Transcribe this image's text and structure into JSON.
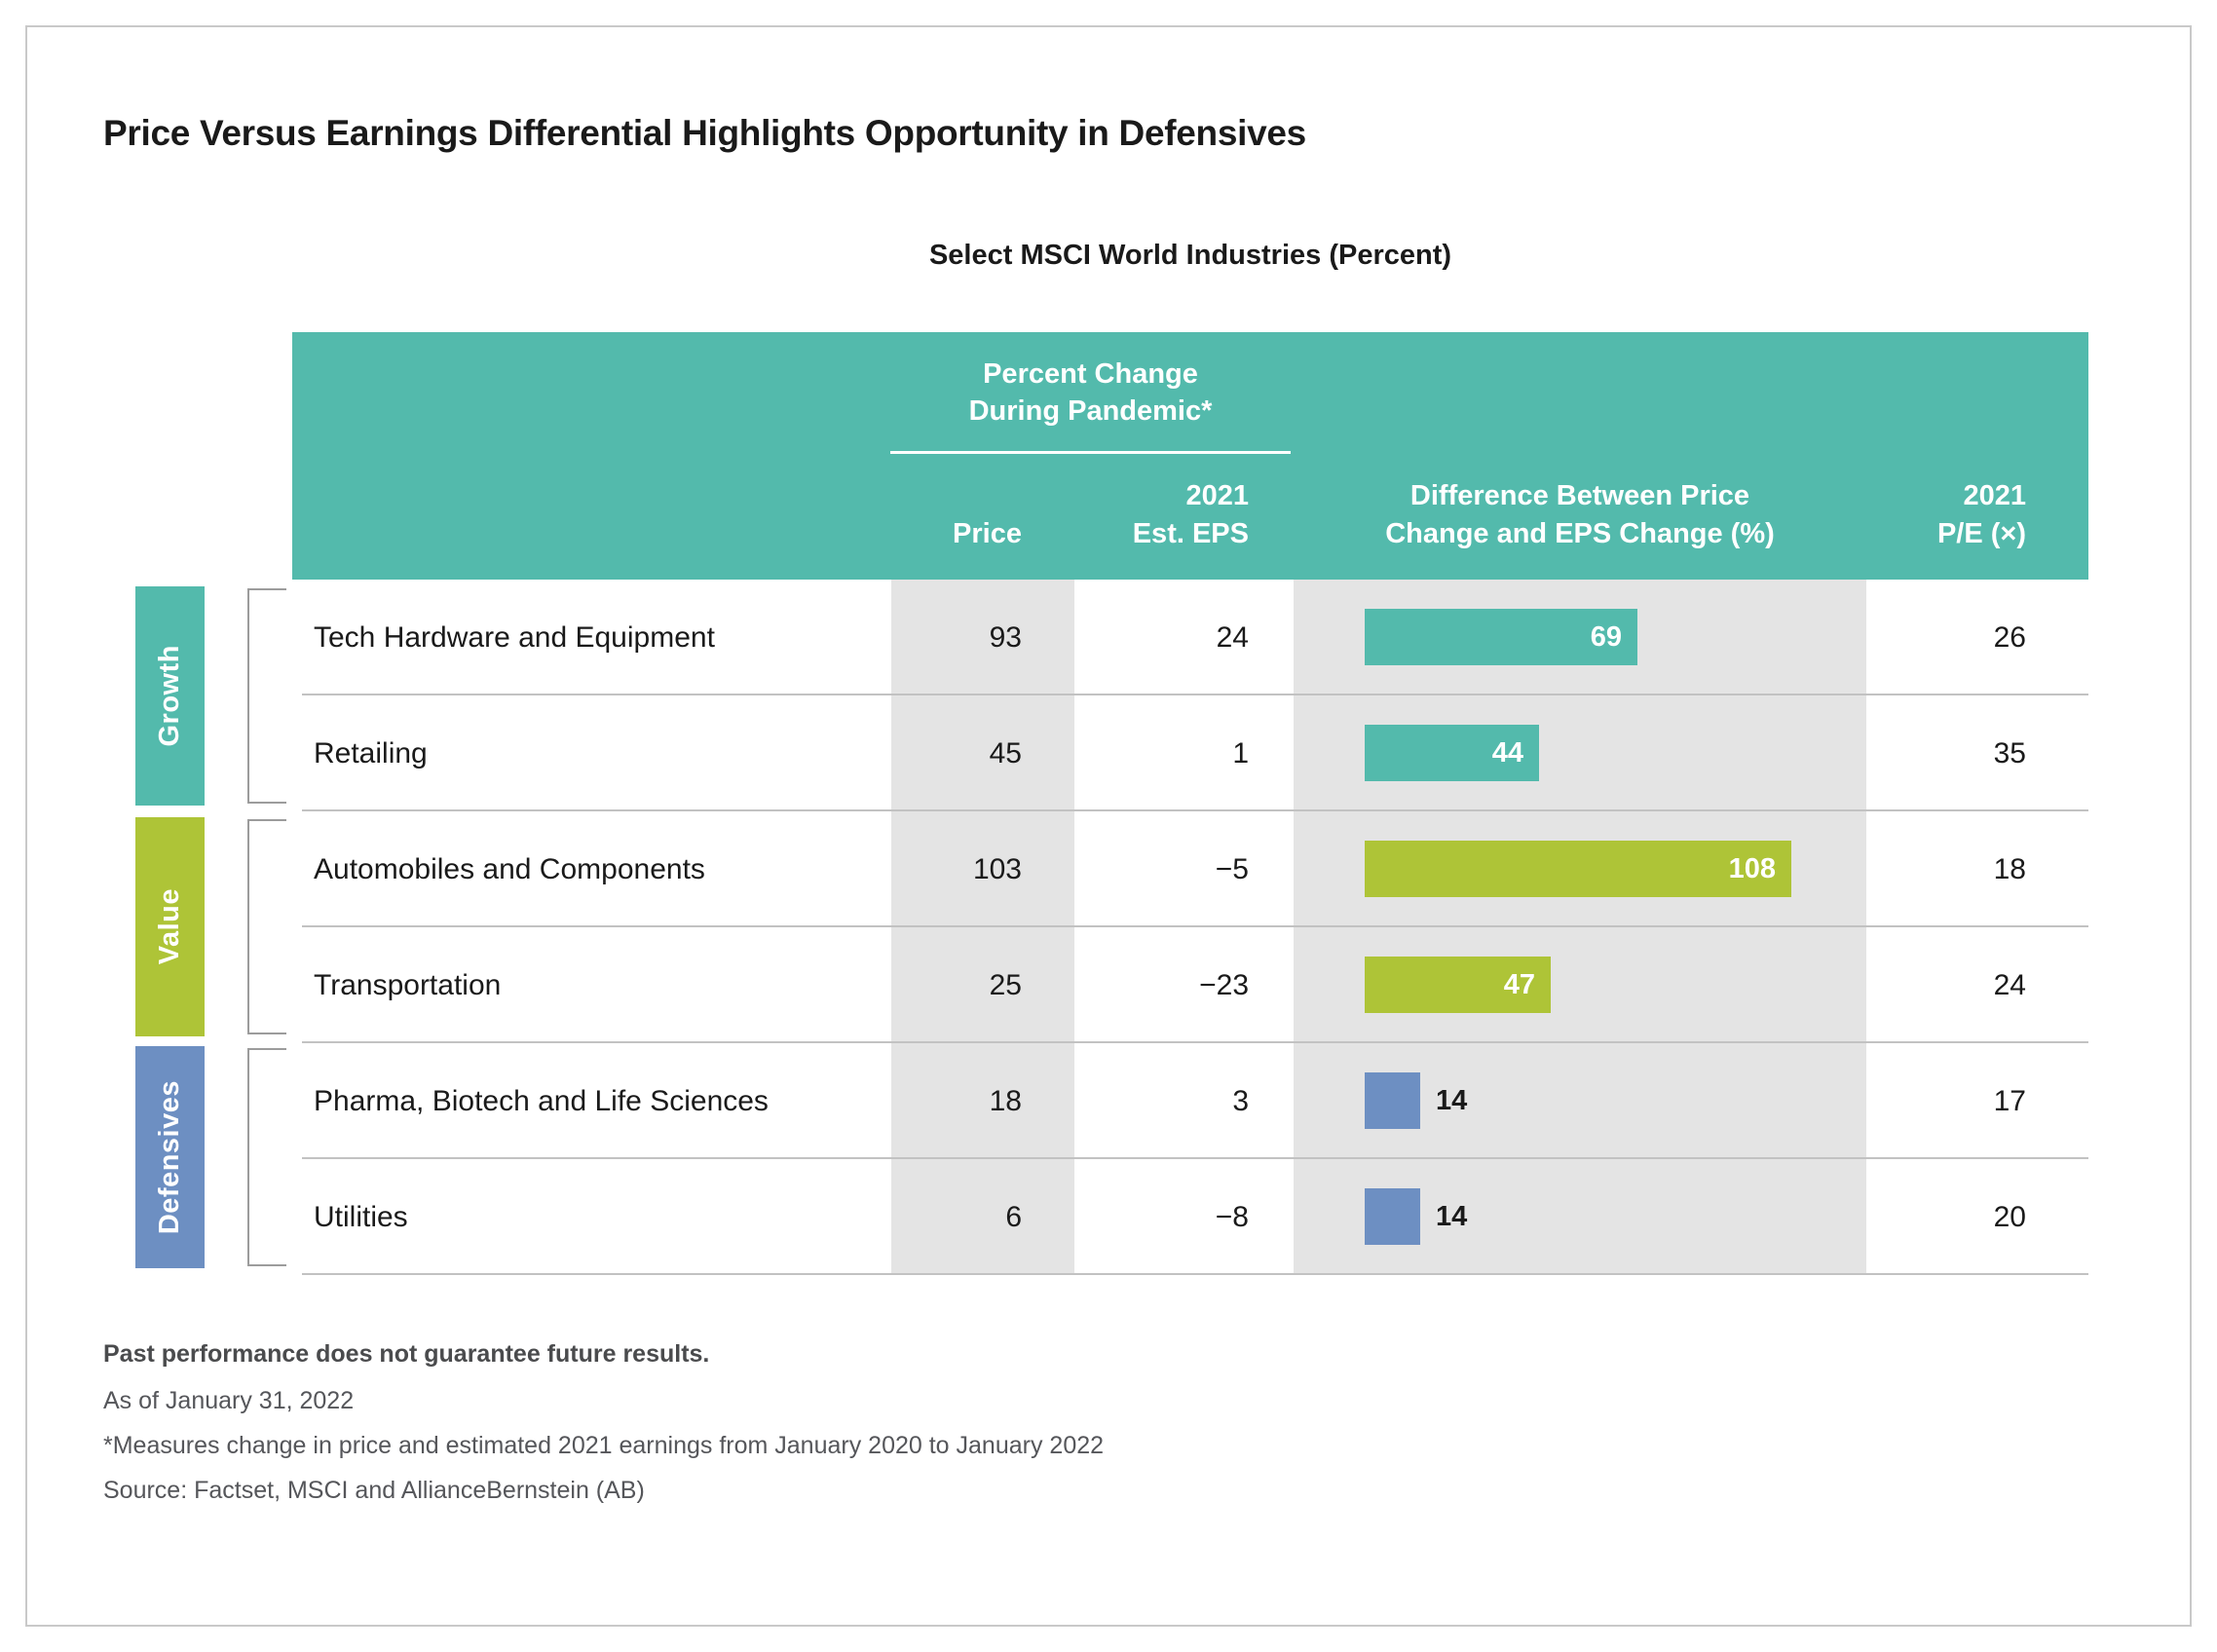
{
  "page": {
    "title": "Price Versus Earnings Differential Highlights Opportunity in Defensives",
    "subtitle": "Select MSCI World Industries (Percent)"
  },
  "colors": {
    "header_bg": "#53BAAC",
    "column_shade": "#E4E4E4"
  },
  "table": {
    "header": {
      "pandemic_group": "Percent Change\nDuring Pandemic*",
      "price": "Price",
      "eps": "2021\nEst. EPS",
      "diff": "Difference Between Price\nChange and EPS Change (%)",
      "pe": "2021\nP/E (×)"
    },
    "group_colors": {
      "growth": "#53BAAC",
      "value": "#AEC437",
      "defensives": "#6D8FC2"
    },
    "groups": [
      {
        "key": "growth",
        "label": "Growth"
      },
      {
        "key": "value",
        "label": "Value"
      },
      {
        "key": "defensives",
        "label": "Defensives"
      }
    ],
    "rows": [
      {
        "industry": "Tech Hardware and Equipment",
        "price": "93",
        "eps": "24",
        "diff": 69,
        "pe": "26",
        "group": "growth"
      },
      {
        "industry": "Retailing",
        "price": "45",
        "eps": "1",
        "diff": 44,
        "pe": "35",
        "group": "growth"
      },
      {
        "industry": "Automobiles and Components",
        "price": "103",
        "eps": "−5",
        "diff": 108,
        "pe": "18",
        "group": "value"
      },
      {
        "industry": "Transportation",
        "price": "25",
        "eps": "−23",
        "diff": 47,
        "pe": "24",
        "group": "value"
      },
      {
        "industry": "Pharma, Biotech and Life Sciences",
        "price": "18",
        "eps": "3",
        "diff": 14,
        "pe": "17",
        "group": "defensives"
      },
      {
        "industry": "Utilities",
        "price": "6",
        "eps": "−8",
        "diff": 14,
        "pe": "20",
        "group": "defensives"
      }
    ]
  },
  "footnotes": {
    "disclaimer": "Past performance does not guarantee future results.",
    "as_of": "As of January 31, 2022",
    "note": "*Measures change in price and estimated 2021 earnings from January 2020 to January 2022",
    "source": "Source: Factset, MSCI and AllianceBernstein (AB)"
  },
  "chart_data": {
    "type": "bar",
    "title": "Price Versus Earnings Differential Highlights Opportunity in Defensives",
    "subtitle": "Select MSCI World Industries (Percent)",
    "categories": [
      "Tech Hardware and Equipment",
      "Retailing",
      "Automobiles and Components",
      "Transportation",
      "Pharma, Biotech and Life Sciences",
      "Utilities"
    ],
    "category_groups": [
      "Growth",
      "Growth",
      "Value",
      "Value",
      "Defensives",
      "Defensives"
    ],
    "series": [
      {
        "name": "Price — Percent Change During Pandemic*",
        "values": [
          93,
          45,
          103,
          25,
          18,
          6
        ]
      },
      {
        "name": "2021 Est. EPS — Percent Change During Pandemic*",
        "values": [
          24,
          1,
          -5,
          -23,
          3,
          -8
        ]
      },
      {
        "name": "Difference Between Price Change and EPS Change (%)",
        "values": [
          69,
          44,
          108,
          47,
          14,
          14
        ],
        "plotted_as_bars": true
      },
      {
        "name": "2021 P/E (×)",
        "values": [
          26,
          35,
          18,
          24,
          17,
          20
        ]
      }
    ],
    "bar_colors_by_group": {
      "Growth": "#53BAAC",
      "Value": "#AEC437",
      "Defensives": "#6D8FC2"
    },
    "bar_axis_range": [
      0,
      145
    ],
    "orientation": "horizontal",
    "grid": false,
    "legend_position": "none"
  }
}
